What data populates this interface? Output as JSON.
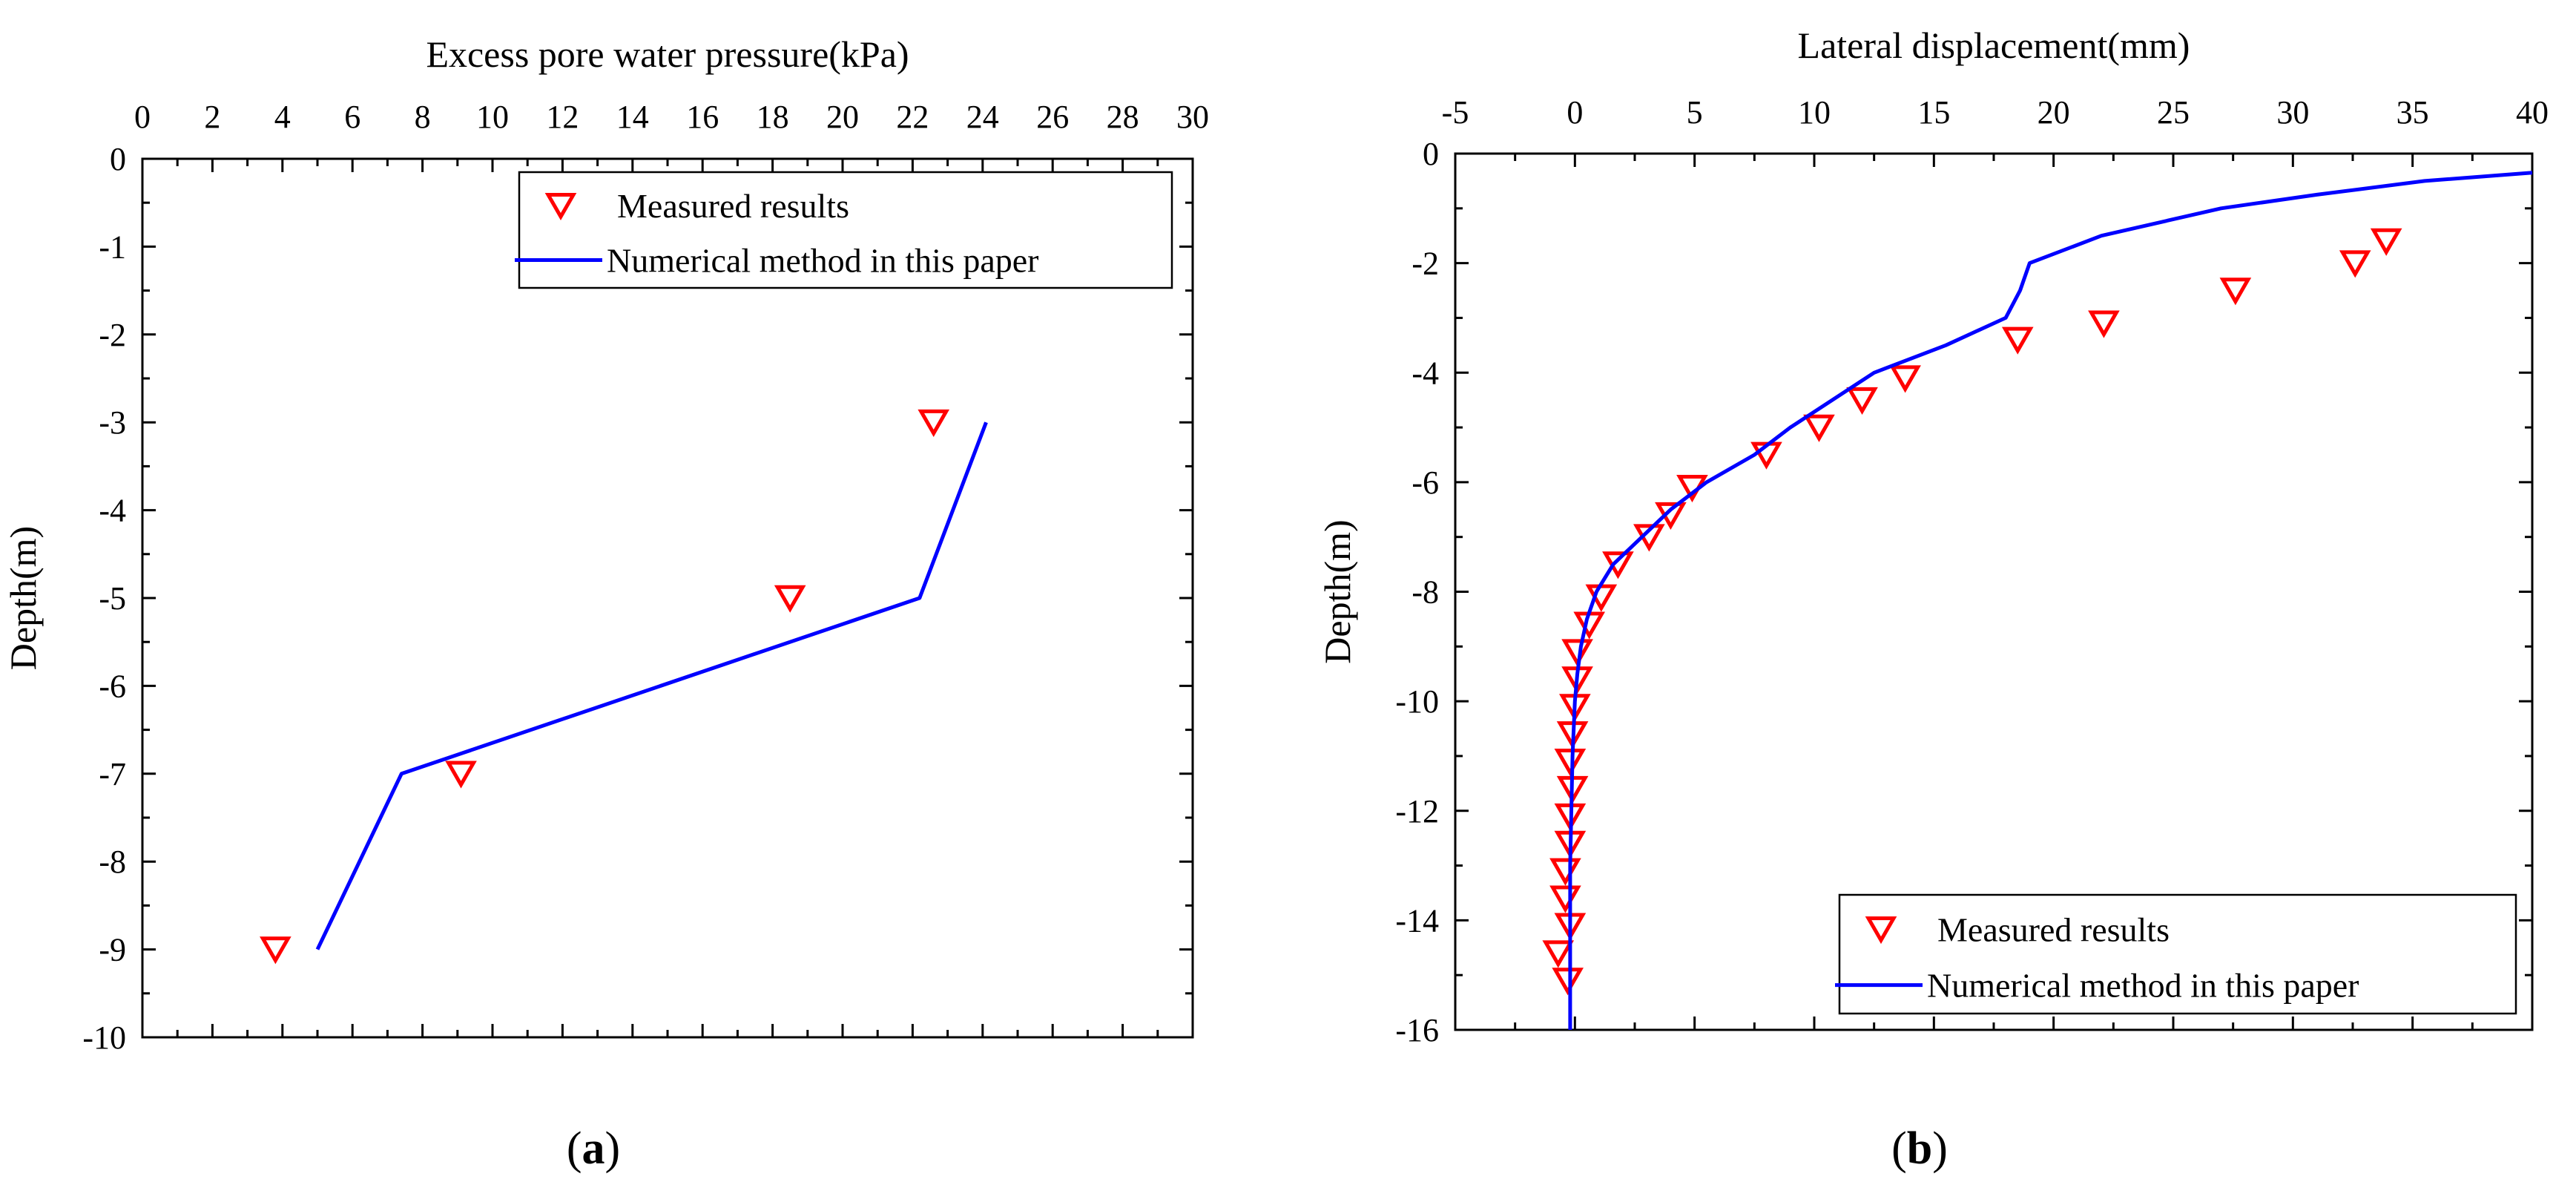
{
  "chart_data": [
    {
      "type": "scatter",
      "panel_label": "a",
      "xlabel": "Excess pore water pressure(kPa)",
      "ylabel": "Depth(m)",
      "x_axis_position": "top",
      "xlim": [
        0,
        30
      ],
      "ylim": [
        -10,
        0
      ],
      "x_ticks": [
        0,
        2,
        4,
        6,
        8,
        10,
        12,
        14,
        16,
        18,
        20,
        22,
        24,
        26,
        28,
        30
      ],
      "y_ticks": [
        0,
        -1,
        -2,
        -3,
        -4,
        -5,
        -6,
        -7,
        -8,
        -9,
        -10
      ],
      "x_tick_labels": [
        "0",
        "2",
        "4",
        "6",
        "8",
        "10",
        "12",
        "14",
        "16",
        "18",
        "20",
        "22",
        "24",
        "26",
        "28",
        "30"
      ],
      "y_tick_labels": [
        "0",
        "-1",
        "-2",
        "-3",
        "-4",
        "-5",
        "-6",
        "-7",
        "-8",
        "-9",
        "-10"
      ],
      "grid": false,
      "legend_position": "top-right",
      "series": [
        {
          "name": "Measured results",
          "kind": "marker",
          "color": "#ff0000",
          "points": [
            [
              22.6,
              -3.0
            ],
            [
              18.5,
              -5.0
            ],
            [
              9.1,
              -7.0
            ],
            [
              3.8,
              -9.0
            ]
          ]
        },
        {
          "name": "Numerical method in this paper",
          "kind": "line",
          "color": "#0000ff",
          "points": [
            [
              24.1,
              -3.0
            ],
            [
              22.2,
              -5.0
            ],
            [
              7.4,
              -7.0
            ],
            [
              5.0,
              -9.0
            ]
          ]
        }
      ]
    },
    {
      "type": "scatter",
      "panel_label": "b",
      "xlabel": "Lateral displacement(mm)",
      "ylabel": "Depth(m)",
      "x_axis_position": "top",
      "xlim": [
        -5,
        40
      ],
      "ylim": [
        -16,
        0
      ],
      "x_ticks": [
        -5,
        0,
        5,
        10,
        15,
        20,
        25,
        30,
        35,
        40
      ],
      "y_ticks": [
        0,
        -2,
        -4,
        -6,
        -8,
        -10,
        -12,
        -14,
        -16
      ],
      "x_tick_labels": [
        "-5",
        "0",
        "5",
        "10",
        "15",
        "20",
        "25",
        "30",
        "35",
        "40"
      ],
      "y_tick_labels": [
        "0",
        "-2",
        "-4",
        "-6",
        "-8",
        "-10",
        "-12",
        "-14",
        "-16"
      ],
      "grid": false,
      "legend_position": "bottom-right",
      "series": [
        {
          "name": "Measured results",
          "kind": "marker",
          "color": "#ff0000",
          "points": [
            [
              33.9,
              -1.6
            ],
            [
              32.6,
              -2.0
            ],
            [
              27.6,
              -2.5
            ],
            [
              22.1,
              -3.1
            ],
            [
              18.5,
              -3.4
            ],
            [
              13.8,
              -4.1
            ],
            [
              12.0,
              -4.5
            ],
            [
              10.2,
              -5.0
            ],
            [
              8.0,
              -5.5
            ],
            [
              4.9,
              -6.1
            ],
            [
              4.0,
              -6.6
            ],
            [
              3.1,
              -7.0
            ],
            [
              1.8,
              -7.5
            ],
            [
              1.1,
              -8.1
            ],
            [
              0.6,
              -8.6
            ],
            [
              0.1,
              -9.1
            ],
            [
              0.1,
              -9.6
            ],
            [
              0.0,
              -10.1
            ],
            [
              -0.1,
              -10.6
            ],
            [
              -0.2,
              -11.1
            ],
            [
              -0.1,
              -11.6
            ],
            [
              -0.2,
              -12.1
            ],
            [
              -0.2,
              -12.6
            ],
            [
              -0.4,
              -13.1
            ],
            [
              -0.4,
              -13.6
            ],
            [
              -0.2,
              -14.1
            ],
            [
              -0.7,
              -14.6
            ],
            [
              -0.3,
              -15.1
            ]
          ]
        },
        {
          "name": "Numerical method in this paper",
          "kind": "line",
          "color": "#0000ff",
          "points": [
            [
              40.0,
              -0.35
            ],
            [
              35.5,
              -0.5
            ],
            [
              31.0,
              -0.75
            ],
            [
              27.0,
              -1.0
            ],
            [
              22.0,
              -1.5
            ],
            [
              19.0,
              -2.0
            ],
            [
              18.6,
              -2.5
            ],
            [
              18.0,
              -3.0
            ],
            [
              15.5,
              -3.5
            ],
            [
              12.5,
              -4.0
            ],
            [
              9.0,
              -5.0
            ],
            [
              7.5,
              -5.5
            ],
            [
              5.5,
              -6.0
            ],
            [
              4.0,
              -6.5
            ],
            [
              2.8,
              -7.0
            ],
            [
              1.6,
              -7.5
            ],
            [
              0.9,
              -8.0
            ],
            [
              0.5,
              -8.5
            ],
            [
              0.25,
              -9.0
            ],
            [
              0.1,
              -9.5
            ],
            [
              0.0,
              -10.0
            ],
            [
              -0.1,
              -11.0
            ],
            [
              -0.15,
              -12.0
            ],
            [
              -0.2,
              -13.0
            ],
            [
              -0.2,
              -14.0
            ],
            [
              -0.2,
              -15.0
            ],
            [
              -0.2,
              -16.0
            ]
          ]
        }
      ]
    }
  ]
}
